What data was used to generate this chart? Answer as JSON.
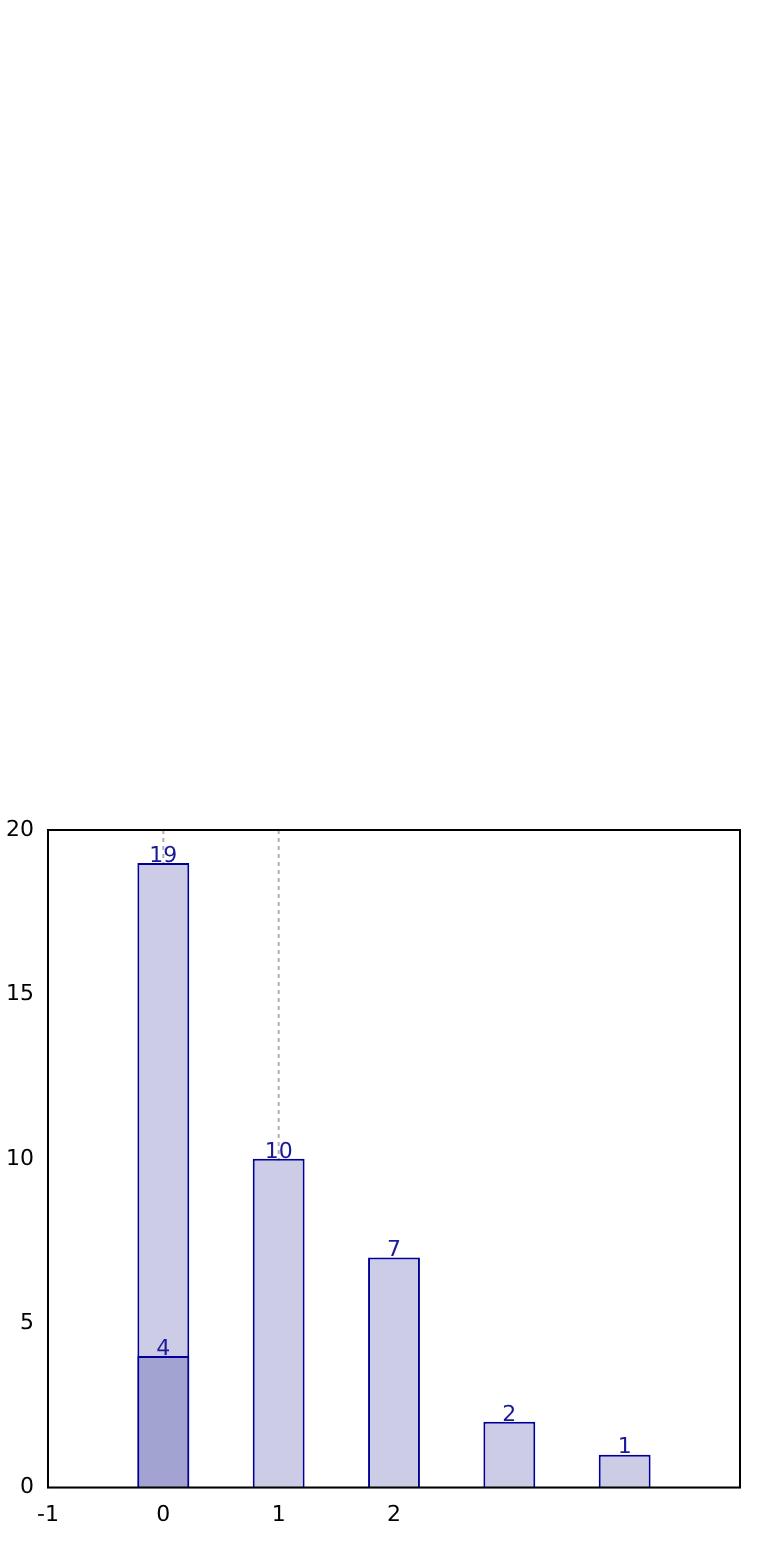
{
  "chart_data": {
    "type": "bar",
    "x": [
      0,
      1,
      2,
      3,
      4
    ],
    "series": [
      {
        "color": "#ccccE6",
        "values": [
          19,
          10,
          7,
          2,
          1
        ]
      },
      {
        "color": "#a3a3d1",
        "x": [
          0
        ],
        "values": [
          4
        ]
      }
    ],
    "xlim": [
      -1,
      5
    ],
    "xticks": [
      -1,
      0,
      1,
      2
    ],
    "ylim": [
      0,
      20
    ],
    "yticks": [
      0,
      5,
      10,
      15,
      20
    ],
    "data_labels": true,
    "grid": false,
    "ref_lines": [
      {
        "axis": "x",
        "value": 0,
        "line_style": "dotted",
        "color": "#b0b0b0"
      },
      {
        "axis": "x",
        "value": 1,
        "line_style": "dotted",
        "color": "#b0b0b0"
      }
    ]
  }
}
